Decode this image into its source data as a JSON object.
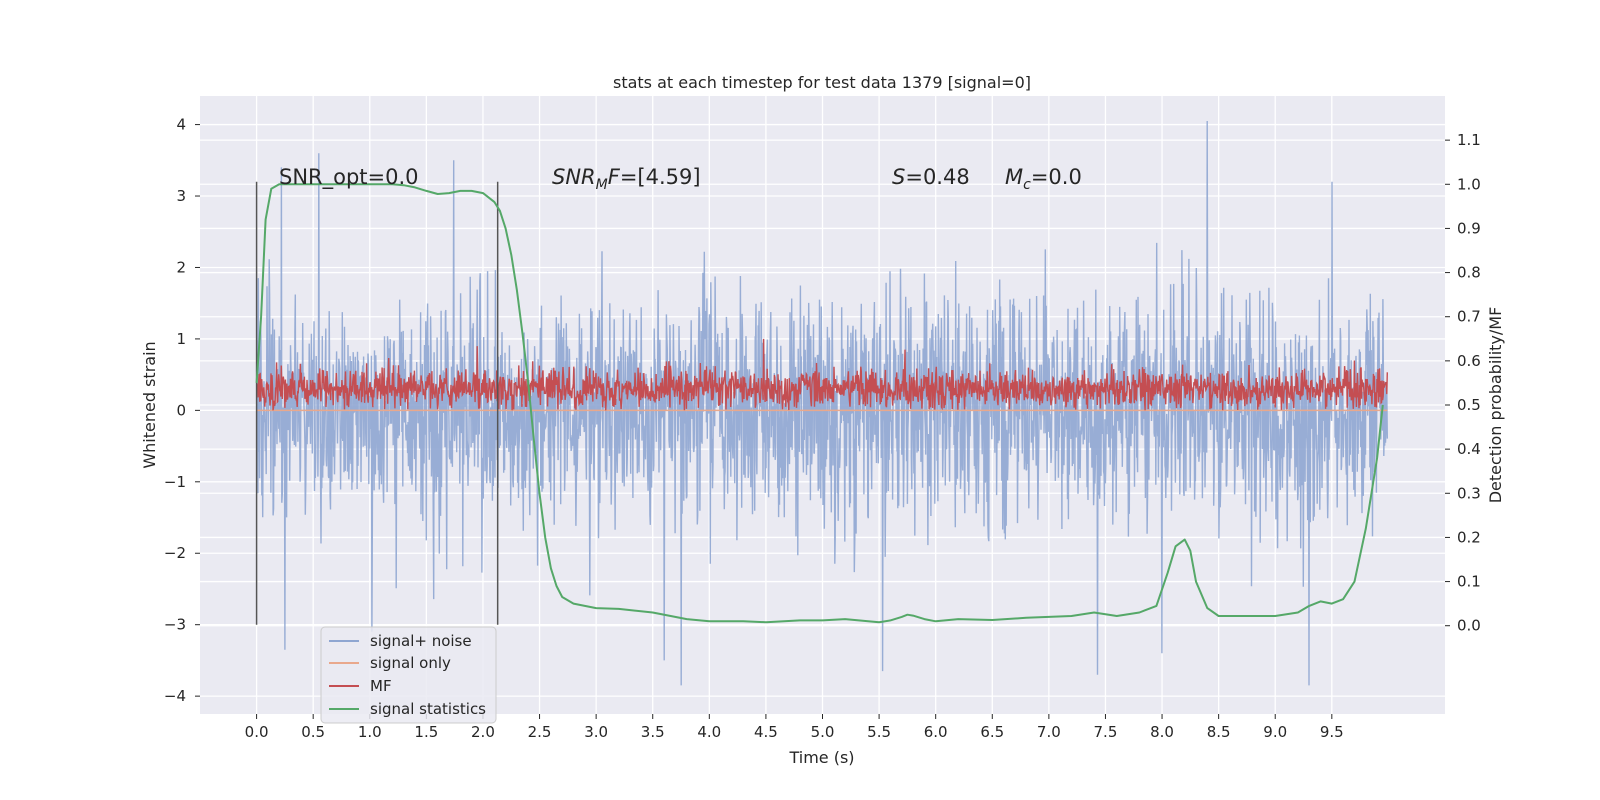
{
  "chart_data": {
    "type": "line",
    "title": "stats at each timestep for test data 1379 [signal=0]",
    "xlabel": "Time (s)",
    "ylabel": "Whitened strain",
    "y2label": "Detection probability/MF",
    "xlim": [
      -0.5,
      10.5
    ],
    "ylim": [
      -4.25,
      4.4
    ],
    "y2lim": [
      -0.2,
      1.2
    ],
    "xticks": [
      0.0,
      0.5,
      1.0,
      1.5,
      2.0,
      2.5,
      3.0,
      3.5,
      4.0,
      4.5,
      5.0,
      5.5,
      6.0,
      6.5,
      7.0,
      7.5,
      8.0,
      8.5,
      9.0,
      9.5
    ],
    "xtick_labels": [
      "0.0",
      "0.5",
      "1.0",
      "1.5",
      "2.0",
      "2.5",
      "3.0",
      "3.5",
      "4.0",
      "4.5",
      "5.0",
      "5.5",
      "6.0",
      "6.5",
      "7.0",
      "7.5",
      "8.0",
      "8.5",
      "9.0",
      "9.5"
    ],
    "yticks": [
      4,
      3,
      2,
      1,
      0,
      -1,
      -2,
      -3,
      -4
    ],
    "ytick_labels": [
      "4",
      "3",
      "2",
      "1",
      "0",
      "−1",
      "−2",
      "−3",
      "−4"
    ],
    "y2ticks": [
      1.1,
      1.0,
      0.9,
      0.8,
      0.7,
      0.6,
      0.5,
      0.4,
      0.3,
      0.2,
      0.1,
      0.0
    ],
    "y2tick_labels": [
      "1.1",
      "1.0",
      "0.9",
      "0.8",
      "0.7",
      "0.6",
      "0.5",
      "0.4",
      "0.3",
      "0.2",
      "0.1",
      "0.0"
    ],
    "grid": true,
    "legend_placement": "lower-left",
    "annotations": {
      "snr_opt": "SNR_opt=0.0",
      "snr_mf_main": "SNR",
      "snr_mf_sub": "M",
      "snr_mf_rest": "F",
      "snr_mf_value": "=[4.59]",
      "s_label": "S",
      "s_value": "=0.48",
      "mc_label": "M",
      "mc_sub": "c",
      "mc_value": "=0.0"
    },
    "vertical_markers_x": [
      0.0,
      2.13
    ],
    "vertical_markers_range": [
      -3.0,
      3.2
    ],
    "series": [
      {
        "name": "signal+ noise",
        "color": "#8fa6d1",
        "axis": "left",
        "description_values": {
          "x_range": [
            0.0,
            9.99
          ],
          "typical_range": [
            -2.3,
            2.3
          ],
          "extremes": [
            -3.9,
            4.05
          ]
        },
        "peaks": [
          {
            "x": 0.22,
            "y": 3.4
          },
          {
            "x": 0.25,
            "y": -3.35
          },
          {
            "x": 0.55,
            "y": 3.6
          },
          {
            "x": 1.02,
            "y": -3.1
          },
          {
            "x": 1.74,
            "y": 3.5
          },
          {
            "x": 3.6,
            "y": -3.5
          },
          {
            "x": 3.75,
            "y": -3.85
          },
          {
            "x": 5.53,
            "y": -3.65
          },
          {
            "x": 7.43,
            "y": -3.7
          },
          {
            "x": 8.0,
            "y": -3.4
          },
          {
            "x": 8.4,
            "y": 4.05
          },
          {
            "x": 9.3,
            "y": -3.85
          },
          {
            "x": 9.5,
            "y": 3.2
          }
        ]
      },
      {
        "name": "signal only",
        "color": "#e9a88c",
        "axis": "left",
        "values_note": "flat at 0",
        "x": [
          0.0,
          9.99
        ],
        "y": [
          0.0,
          0.0
        ]
      },
      {
        "name": "MF",
        "color": "#c44e52",
        "axis": "left",
        "typical_range": [
          0.0,
          0.75
        ],
        "peaks": [
          {
            "x": 1.95,
            "y": 0.9
          },
          {
            "x": 4.48,
            "y": 1.0
          },
          {
            "x": 5.73,
            "y": 0.85
          }
        ]
      },
      {
        "name": "signal statistics",
        "color": "#55a868",
        "axis": "right",
        "x": [
          0.0,
          0.04,
          0.08,
          0.13,
          0.2,
          0.3,
          0.5,
          0.8,
          1.0,
          1.2,
          1.3,
          1.4,
          1.5,
          1.6,
          1.7,
          1.8,
          1.9,
          2.0,
          2.1,
          2.15,
          2.2,
          2.25,
          2.3,
          2.35,
          2.4,
          2.45,
          2.5,
          2.55,
          2.6,
          2.65,
          2.7,
          2.8,
          2.9,
          3.0,
          3.2,
          3.5,
          3.8,
          4.0,
          4.3,
          4.5,
          4.8,
          5.0,
          5.2,
          5.5,
          5.6,
          5.7,
          5.75,
          5.8,
          5.9,
          6.0,
          6.2,
          6.5,
          6.8,
          7.0,
          7.2,
          7.4,
          7.5,
          7.6,
          7.8,
          7.95,
          8.05,
          8.12,
          8.2,
          8.25,
          8.3,
          8.4,
          8.5,
          8.7,
          9.0,
          9.2,
          9.3,
          9.4,
          9.5,
          9.6,
          9.7,
          9.8,
          9.9,
          9.95
        ],
        "y": [
          0.55,
          0.7,
          0.92,
          0.99,
          1.0,
          1.0,
          1.0,
          1.0,
          1.0,
          1.0,
          0.998,
          0.993,
          0.985,
          0.978,
          0.98,
          0.985,
          0.985,
          0.98,
          0.96,
          0.94,
          0.9,
          0.84,
          0.76,
          0.66,
          0.55,
          0.42,
          0.3,
          0.2,
          0.13,
          0.09,
          0.065,
          0.05,
          0.045,
          0.04,
          0.038,
          0.03,
          0.015,
          0.01,
          0.01,
          0.008,
          0.012,
          0.012,
          0.015,
          0.008,
          0.012,
          0.02,
          0.025,
          0.023,
          0.015,
          0.01,
          0.015,
          0.013,
          0.018,
          0.02,
          0.022,
          0.03,
          0.026,
          0.022,
          0.03,
          0.045,
          0.12,
          0.18,
          0.195,
          0.17,
          0.1,
          0.04,
          0.022,
          0.022,
          0.022,
          0.03,
          0.045,
          0.055,
          0.05,
          0.06,
          0.1,
          0.22,
          0.38,
          0.5
        ]
      }
    ]
  }
}
